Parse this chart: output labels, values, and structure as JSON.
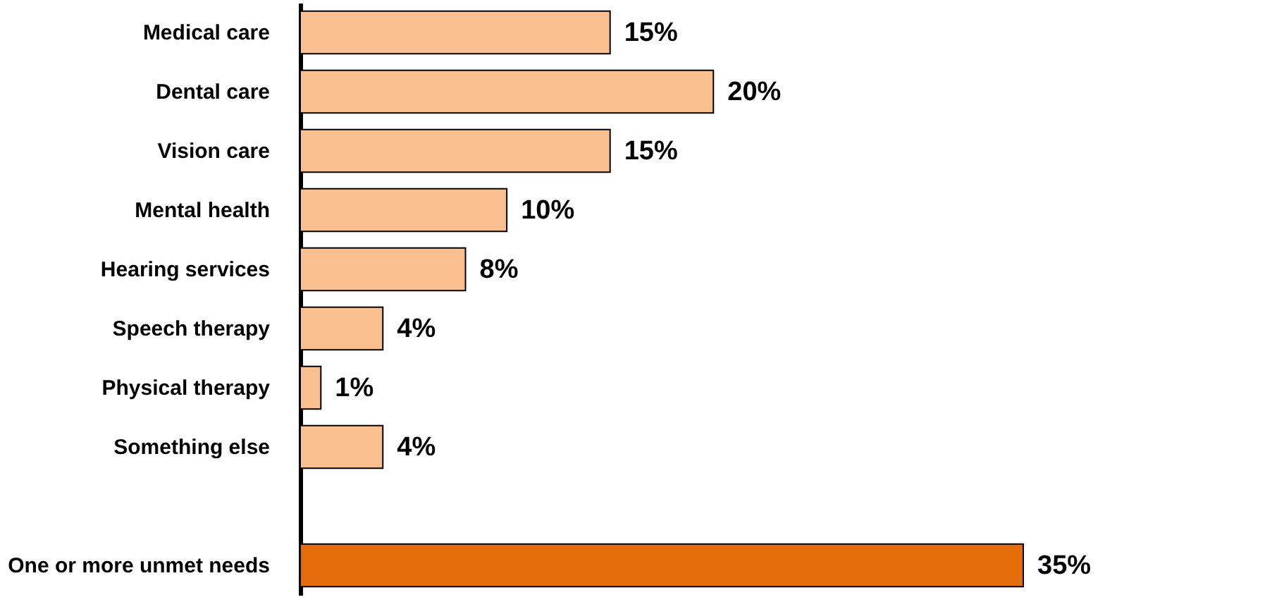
{
  "chart_data": {
    "type": "bar",
    "orientation": "horizontal",
    "categories": [
      "Medical care",
      "Dental care",
      "Vision care",
      "Mental health",
      "Hearing services",
      "Speech therapy",
      "Physical therapy",
      "Something else",
      null,
      "One or more unmet needs"
    ],
    "values": [
      15,
      20,
      15,
      10,
      8,
      4,
      1,
      4,
      null,
      35
    ],
    "value_labels": [
      "15%",
      "20%",
      "15%",
      "10%",
      "8%",
      "4%",
      "1%",
      "4%",
      null,
      "35%"
    ],
    "colors": [
      "#fac090",
      "#fac090",
      "#fac090",
      "#fac090",
      "#fac090",
      "#fac090",
      "#fac090",
      "#fac090",
      null,
      "#e46c0a"
    ]
  }
}
